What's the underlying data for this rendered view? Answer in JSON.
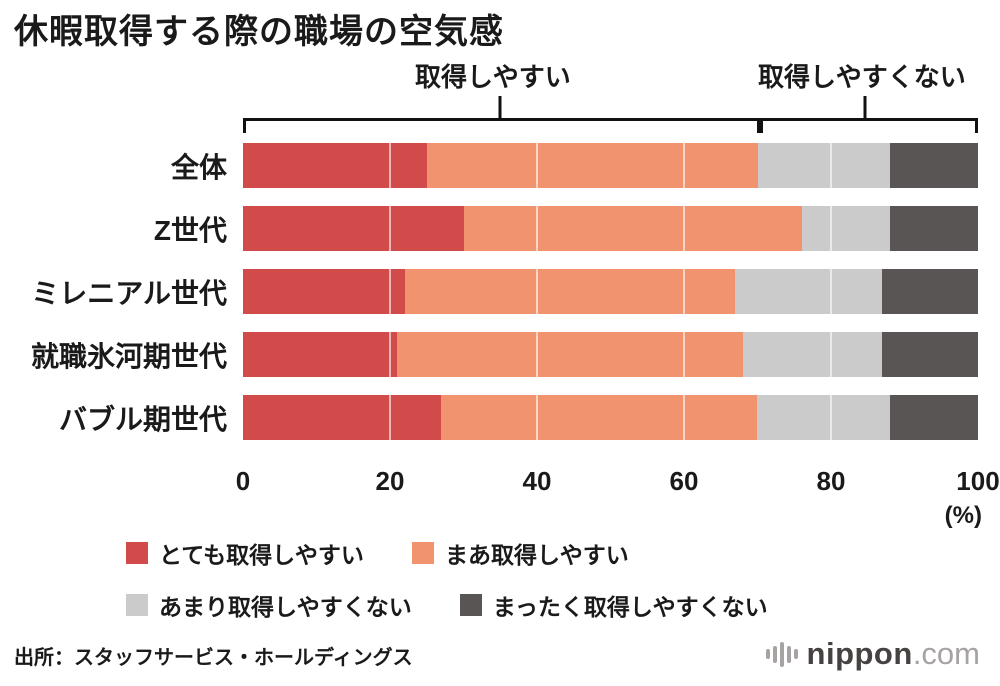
{
  "title": "休暇取得する際の職場の空気感",
  "annotations": {
    "easy_label": "取得しやすい",
    "not_easy_label": "取得しやすくない"
  },
  "axis": {
    "ticks": [
      0,
      20,
      40,
      60,
      80,
      100
    ],
    "unit": "(%)"
  },
  "source": "出所：スタッフサービス・ホールディングス",
  "logo": {
    "name": "nippon",
    "tld": ".com",
    "icon": "audio-wave-bars"
  },
  "chart_data": {
    "type": "bar",
    "stacked": true,
    "orientation": "horizontal",
    "title": "休暇取得する際の職場の空気感",
    "categories": [
      "全体",
      "Z世代",
      "ミレニアル世代",
      "就職氷河期世代",
      "バブル期世代"
    ],
    "series": [
      {
        "name": "とても取得しやすい",
        "color": "#d14b4b",
        "values": [
          25,
          30,
          22,
          21,
          27
        ]
      },
      {
        "name": "まあ取得しやすい",
        "color": "#f2936f",
        "values": [
          45,
          46,
          45,
          47,
          43
        ]
      },
      {
        "name": "あまり取得しやすくない",
        "color": "#cccbcb",
        "values": [
          18,
          12,
          20,
          19,
          18
        ]
      },
      {
        "name": "まったく取得しやすくない",
        "color": "#595555",
        "values": [
          12,
          12,
          13,
          13,
          12
        ]
      }
    ],
    "xlim": [
      0,
      100
    ],
    "x_ticks": [
      0,
      20,
      40,
      60,
      80,
      100
    ],
    "unit": "%",
    "bracket_split": 70.5,
    "grid": "white vertical lines at 20/40/60/80 over bars",
    "legend_position": "bottom"
  }
}
